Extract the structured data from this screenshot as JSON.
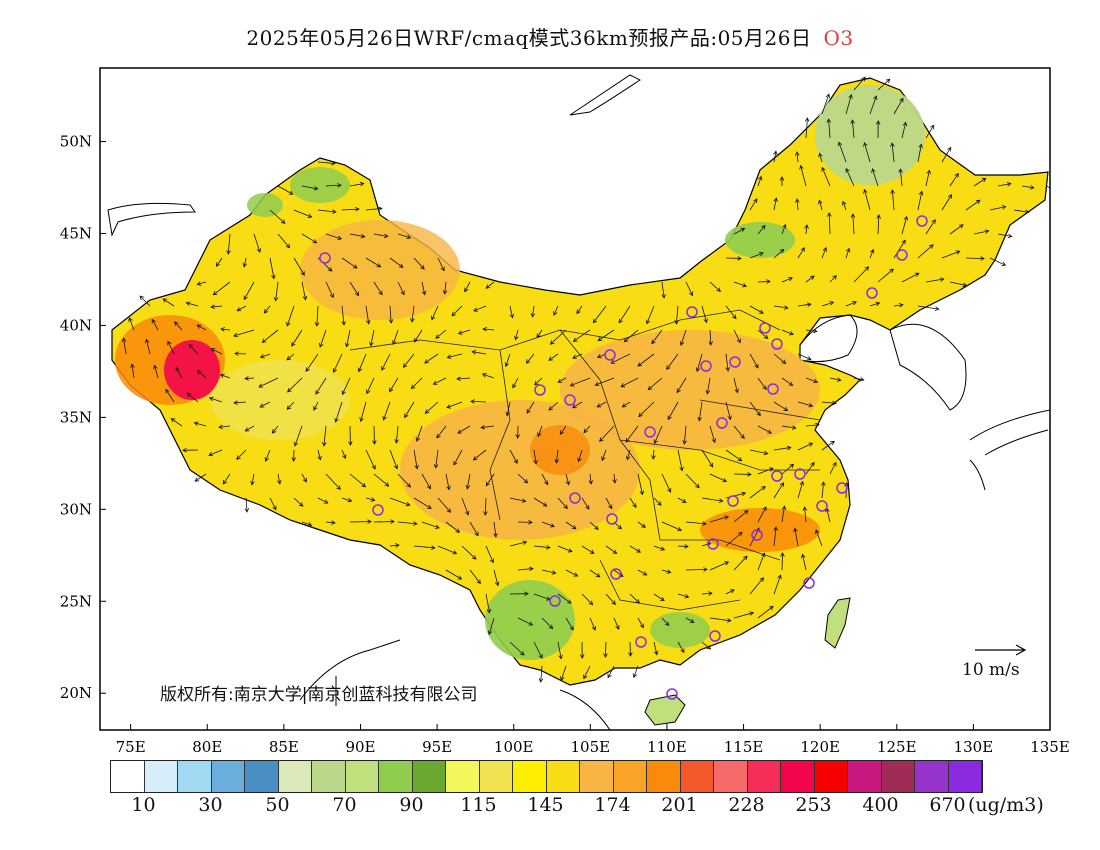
{
  "title": {
    "text": "2025年05月26日WRF/cmaq模式36km预报产品:05月26日",
    "pollutant": "O3"
  },
  "map": {
    "lon_ticks": [
      "75E",
      "80E",
      "85E",
      "90E",
      "95E",
      "100E",
      "105E",
      "110E",
      "115E",
      "120E",
      "125E",
      "130E",
      "135E"
    ],
    "lat_ticks": [
      "20N",
      "25N",
      "30N",
      "35N",
      "40N",
      "45N",
      "50N"
    ],
    "lon_range": [
      73,
      135
    ],
    "lat_range": [
      18,
      54
    ],
    "base_color": "#f8dc14",
    "wind_scale_label": "10 m/s",
    "copyright": "版权所有:南京大学|南京创蓝科技有限公司"
  },
  "colorbar": {
    "colors": [
      "#ffffff",
      "#d6eefa",
      "#a1d8f2",
      "#6aaedc",
      "#4a8fc4",
      "#dbe8b9",
      "#bbd78a",
      "#bfe07d",
      "#8fcd4f",
      "#6aa832",
      "#f2f75c",
      "#f0e250",
      "#ffee00",
      "#f8dc14",
      "#f8b445",
      "#f8a427",
      "#f98a0b",
      "#f2582b",
      "#f86a6a",
      "#f42e58",
      "#f2054b",
      "#f70000",
      "#c6187f",
      "#a02b55",
      "#9733cd",
      "#8a2be2"
    ],
    "labels": [
      "10",
      "30",
      "50",
      "70",
      "90",
      "115",
      "145",
      "174",
      "201",
      "228",
      "253",
      "400",
      "670"
    ],
    "unit": "(ug/m3)"
  }
}
